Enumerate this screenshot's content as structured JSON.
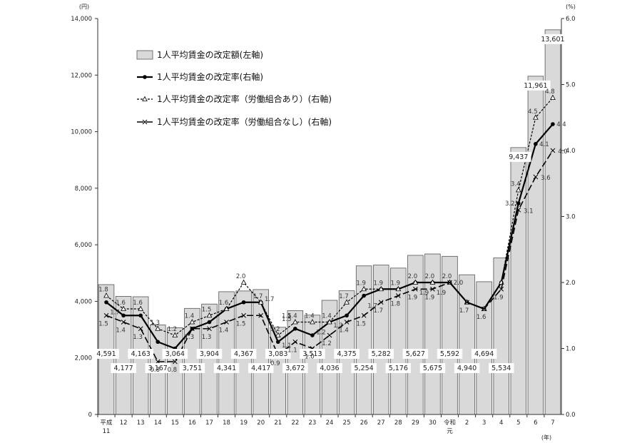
{
  "chart_data": {
    "type": "bar",
    "left_unit": "(円)",
    "right_unit": "(%)",
    "x_unit": "(年)",
    "categories": [
      "平成 11",
      "12",
      "13",
      "14",
      "15",
      "16",
      "17",
      "18",
      "19",
      "20",
      "21",
      "22",
      "23",
      "24",
      "25",
      "26",
      "27",
      "28",
      "29",
      "30",
      "令和 元",
      "2",
      "3",
      "4",
      "5",
      "6",
      "7"
    ],
    "left_axis": {
      "ylim": [
        0,
        14000
      ],
      "ticks": [
        "0",
        "2,000",
        "4,000",
        "6,000",
        "8,000",
        "10,000",
        "12,000",
        "14,000"
      ]
    },
    "right_axis": {
      "ylim": [
        0,
        6.0
      ],
      "ticks": [
        "0.0",
        "1.0",
        "2.0",
        "3.0",
        "4.0",
        "5.0",
        "6.0"
      ]
    },
    "legend": [
      "1人平均賃金の改定額(左軸)",
      "1人平均賃金の改定率(右軸)",
      "1人平均賃金の改定率（労働組合あり）(右軸)",
      "1人平均賃金の改定率（労働組合なし）(右軸)"
    ],
    "series": [
      {
        "name": "1人平均賃金の改定額(左軸)",
        "axis": "left",
        "values": [
          4591,
          4177,
          4163,
          3167,
          3064,
          3751,
          3904,
          4341,
          4367,
          4417,
          3083,
          3672,
          3513,
          4036,
          4375,
          5254,
          5282,
          5176,
          5627,
          5675,
          5592,
          4940,
          4694,
          5534,
          9437,
          11961,
          13601
        ],
        "labels": [
          "4,591",
          "4,177",
          "4,163",
          "3,167",
          "3,064",
          "3,751",
          "3,904",
          "4,341",
          "4,367",
          "4,417",
          "3,083",
          "3,672",
          "3,513",
          "4,036",
          "4,375",
          "5,254",
          "5,282",
          "5,176",
          "5,627",
          "5,675",
          "5,592",
          "4,940",
          "4,694",
          "5,534",
          "9,437",
          "11,961",
          "13,601"
        ]
      },
      {
        "name": "1人平均賃金の改定率(右軸)",
        "axis": "right",
        "values": [
          1.7,
          1.5,
          1.5,
          1.1,
          1.0,
          1.3,
          1.4,
          1.6,
          1.7,
          1.7,
          1.1,
          1.3,
          1.2,
          1.4,
          1.5,
          1.8,
          1.9,
          1.9,
          2.0,
          2.0,
          2.0,
          1.7,
          1.6,
          2.0,
          3.2,
          4.1,
          4.4
        ]
      },
      {
        "name": "1人平均賃金の改定率（労働組合あり）(右軸)",
        "axis": "right",
        "values": [
          1.8,
          1.6,
          1.6,
          1.3,
          1.2,
          1.4,
          1.5,
          1.6,
          2.0,
          1.7,
          1.2,
          1.4,
          1.4,
          1.4,
          1.7,
          1.9,
          1.9,
          1.9,
          2.0,
          2.0,
          2.0,
          1.7,
          1.6,
          2.0,
          3.4,
          4.5,
          4.8
        ],
        "labels": [
          "1.8",
          "1.6",
          "1.6",
          "1.3",
          "1.2",
          "1.4",
          "1.5",
          "1.6",
          "2.0",
          "1.7",
          "1.2",
          "1.4",
          "1.4",
          "1.4",
          "1.7",
          "1.9",
          "1.9",
          "1.9",
          "2.0",
          "2.0",
          "2.0",
          "",
          "",
          "",
          "3.4",
          "4.5",
          "4.8"
        ]
      },
      {
        "name": "1人平均賃金の改定率（労働組合なし）(右軸)",
        "axis": "right",
        "values": [
          1.5,
          1.4,
          1.3,
          0.8,
          0.8,
          1.3,
          1.3,
          1.4,
          1.5,
          1.5,
          0.9,
          1.1,
          1.0,
          1.2,
          1.4,
          1.5,
          1.7,
          1.8,
          1.9,
          1.9,
          2.0,
          1.7,
          1.6,
          1.9,
          3.1,
          3.6,
          4.0
        ],
        "labels": [
          "1.5",
          "1.4",
          "1.3",
          "0.8",
          "0.8",
          "1.3",
          "1.3",
          "1.4",
          "1.5",
          "",
          "0.9",
          "1.1",
          "1.0",
          "1.2",
          "1.4",
          "1.5",
          "1.7",
          "1.8",
          "1.9",
          "1.9",
          "",
          "1.7",
          "1.6",
          "1.9",
          "3.1",
          "3.6",
          "4.0"
        ]
      }
    ],
    "extra_rate_labels": [
      "1.7",
      "1.1",
      "1.5",
      "1.7",
      "1.5",
      "1.2",
      "1.3",
      "1.7",
      "1.9",
      "1.9",
      "2.0",
      "3.2",
      "4.1",
      "4.4"
    ]
  }
}
